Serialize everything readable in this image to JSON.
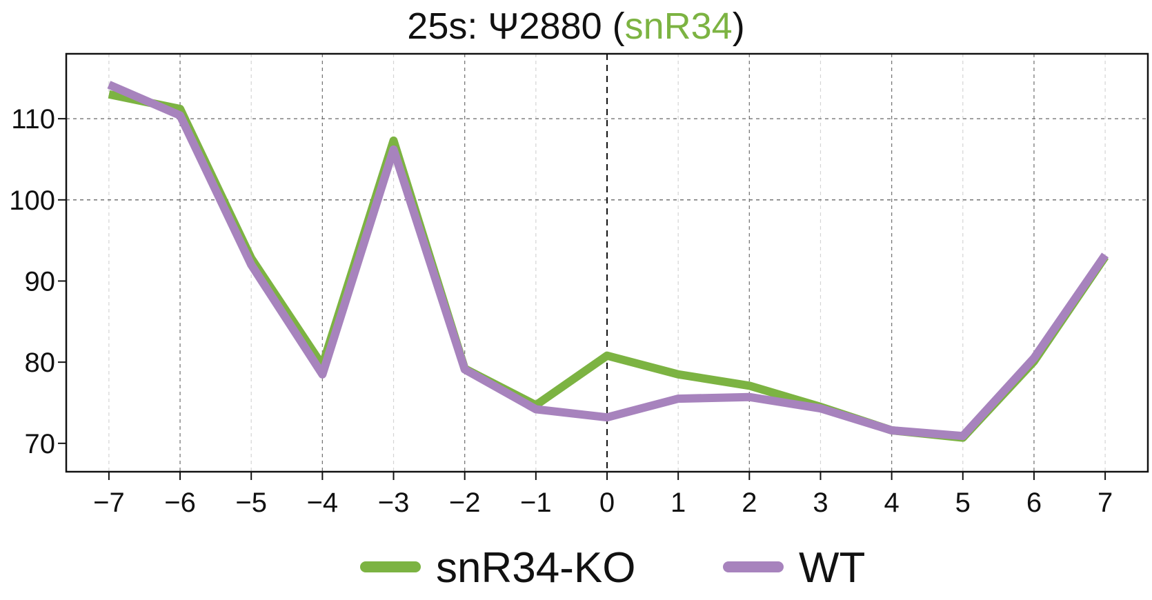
{
  "chart_data": {
    "type": "line",
    "title": {
      "prefix": "25s: Ψ2880 (",
      "highlight": "snR34",
      "suffix": ")"
    },
    "xlabel": "",
    "ylabel": "",
    "x": [
      -7,
      -6,
      -5,
      -4,
      -3,
      -2,
      -1,
      0,
      1,
      2,
      3,
      4,
      5,
      6,
      7
    ],
    "x_tick_labels": [
      "−7",
      "−6",
      "−5",
      "−4",
      "−3",
      "−2",
      "−1",
      "0",
      "1",
      "2",
      "3",
      "4",
      "5",
      "6",
      "7"
    ],
    "yticks": [
      70,
      80,
      90,
      100,
      110
    ],
    "y_tick_labels": [
      "70",
      "80",
      "90",
      "100",
      "110"
    ],
    "xlim": [
      -7.6,
      7.6
    ],
    "ylim": [
      66.5,
      118
    ],
    "grid": true,
    "reference_line_x": 0,
    "legend_position": "bottom-center",
    "series": [
      {
        "name": "snR34-KO",
        "color": "#7cb342",
        "values": [
          113.0,
          111.2,
          92.8,
          79.6,
          107.3,
          79.2,
          74.7,
          80.8,
          78.5,
          77.1,
          74.5,
          71.6,
          70.7,
          80.1,
          93.0
        ]
      },
      {
        "name": "WT",
        "color": "#a783bd",
        "values": [
          114.2,
          110.4,
          92.0,
          78.5,
          106.2,
          79.1,
          74.2,
          73.2,
          75.5,
          75.7,
          74.3,
          71.6,
          70.9,
          80.5,
          93.2
        ]
      }
    ]
  }
}
